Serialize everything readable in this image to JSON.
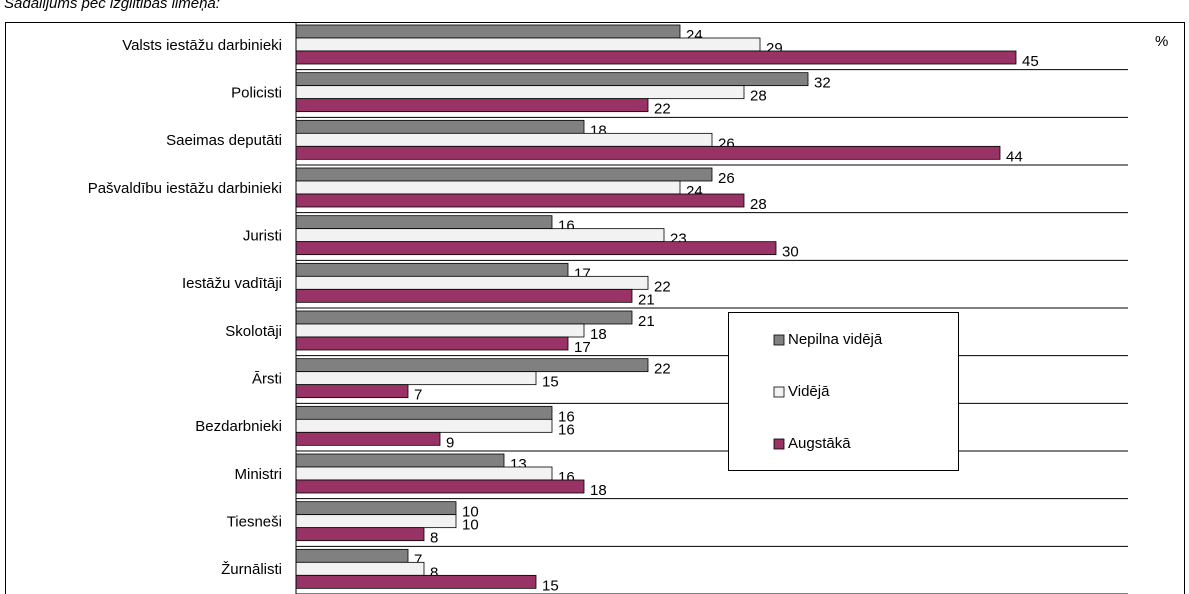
{
  "chart_data": {
    "type": "hbar",
    "subtitle": "Sadalījums pēc izglītības līmeņa:",
    "unit_label": "%",
    "categories": [
      "Valsts iestāžu darbinieki",
      "Policisti",
      "Saeimas deputāti",
      "Pašvaldību iestāžu darbinieki",
      "Juristi",
      "Iestāžu vadītāji",
      "Skolotāji",
      "Ārsti",
      "Bezdarbnieki",
      "Ministri",
      "Tiesneši",
      "Žurnālisti"
    ],
    "series": [
      {
        "name": "Nepilna vidējā",
        "color": "#808080",
        "values": [
          24,
          32,
          18,
          26,
          16,
          17,
          21,
          22,
          16,
          13,
          10,
          7
        ]
      },
      {
        "name": "Vidējā",
        "color": "#f2f2f2",
        "values": [
          29,
          28,
          26,
          24,
          23,
          22,
          18,
          15,
          16,
          16,
          10,
          8
        ]
      },
      {
        "name": "Augstākā",
        "color": "#993366",
        "values": [
          45,
          22,
          44,
          28,
          30,
          21,
          17,
          7,
          9,
          18,
          8,
          15
        ]
      }
    ],
    "xlim": [
      0,
      52
    ],
    "legend": "right"
  }
}
